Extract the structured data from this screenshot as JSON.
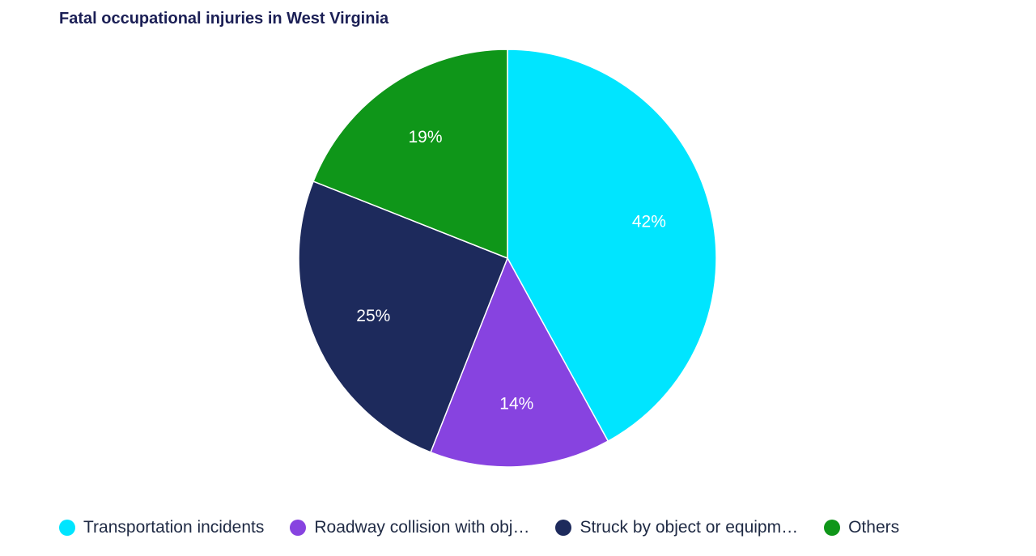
{
  "chart_data": {
    "type": "pie",
    "title": "Fatal occupational injuries in West Virginia",
    "categories": [
      "Transportation incidents",
      "Roadway collision with obj…",
      "Struck by object or equipm…",
      "Others"
    ],
    "values": [
      42,
      14,
      25,
      19
    ],
    "data_labels": [
      "42%",
      "14%",
      "25%",
      "19%"
    ],
    "colors": [
      "#00e5ff",
      "#8743e0",
      "#1d2a5c",
      "#0f9619"
    ],
    "legend_position": "bottom-left",
    "start_angle": "12 o'clock",
    "direction": "clockwise"
  }
}
